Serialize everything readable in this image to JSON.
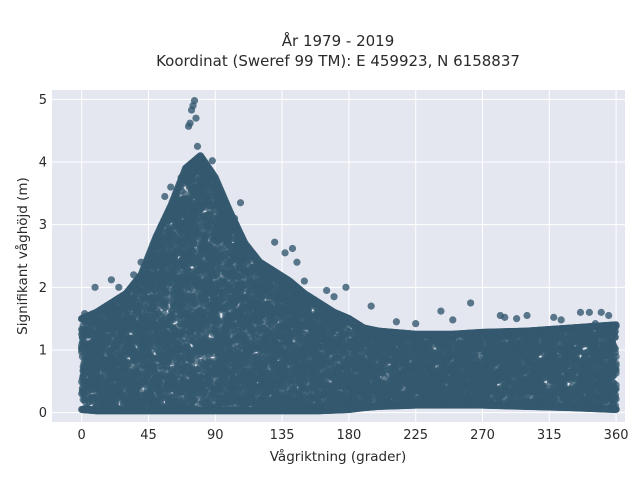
{
  "chart_data": {
    "type": "scatter",
    "title": "År 1979 - 2019",
    "subtitle": "Koordinat (Sweref 99 TM): E 459923, N 6158837",
    "xlabel": "Vågriktning (grader)",
    "ylabel": "Signifikant våghöjd (m)",
    "xlim": [
      -20,
      366
    ],
    "ylim": [
      -0.15,
      5.15
    ],
    "xticks": [
      0,
      45,
      90,
      135,
      180,
      225,
      270,
      315,
      360
    ],
    "yticks": [
      0,
      1,
      2,
      3,
      4,
      5
    ],
    "grid": true,
    "legend": "none",
    "series": [
      {
        "color": "#34596f",
        "envelope": [
          {
            "x": 0,
            "min": 0.05,
            "max": 1.5
          },
          {
            "x": 10,
            "min": 0.03,
            "max": 1.6
          },
          {
            "x": 20,
            "min": 0.03,
            "max": 1.75
          },
          {
            "x": 30,
            "min": 0.03,
            "max": 1.9
          },
          {
            "x": 40,
            "min": 0.03,
            "max": 2.2
          },
          {
            "x": 50,
            "min": 0.03,
            "max": 2.8
          },
          {
            "x": 60,
            "min": 0.03,
            "max": 3.3
          },
          {
            "x": 70,
            "min": 0.03,
            "max": 3.9
          },
          {
            "x": 80,
            "min": 0.03,
            "max": 4.1
          },
          {
            "x": 90,
            "min": 0.03,
            "max": 3.75
          },
          {
            "x": 100,
            "min": 0.03,
            "max": 3.2
          },
          {
            "x": 110,
            "min": 0.03,
            "max": 2.7
          },
          {
            "x": 120,
            "min": 0.03,
            "max": 2.4
          },
          {
            "x": 130,
            "min": 0.03,
            "max": 2.25
          },
          {
            "x": 140,
            "min": 0.03,
            "max": 2.1
          },
          {
            "x": 150,
            "min": 0.03,
            "max": 1.9
          },
          {
            "x": 160,
            "min": 0.03,
            "max": 1.75
          },
          {
            "x": 170,
            "min": 0.04,
            "max": 1.6
          },
          {
            "x": 180,
            "min": 0.05,
            "max": 1.5
          },
          {
            "x": 190,
            "min": 0.08,
            "max": 1.35
          },
          {
            "x": 200,
            "min": 0.1,
            "max": 1.3
          },
          {
            "x": 225,
            "min": 0.12,
            "max": 1.25
          },
          {
            "x": 250,
            "min": 0.12,
            "max": 1.25
          },
          {
            "x": 270,
            "min": 0.12,
            "max": 1.28
          },
          {
            "x": 300,
            "min": 0.1,
            "max": 1.3
          },
          {
            "x": 330,
            "min": 0.08,
            "max": 1.35
          },
          {
            "x": 360,
            "min": 0.05,
            "max": 1.4
          }
        ],
        "outliers": [
          {
            "x": 76,
            "y": 4.98
          },
          {
            "x": 75,
            "y": 4.9
          },
          {
            "x": 74,
            "y": 4.83
          },
          {
            "x": 77,
            "y": 4.7
          },
          {
            "x": 73,
            "y": 4.62
          },
          {
            "x": 72,
            "y": 4.57
          },
          {
            "x": 78,
            "y": 4.25
          },
          {
            "x": 88,
            "y": 4.02
          },
          {
            "x": 56,
            "y": 3.45
          },
          {
            "x": 60,
            "y": 3.6
          },
          {
            "x": 67,
            "y": 3.75
          },
          {
            "x": 107,
            "y": 3.35
          },
          {
            "x": 103,
            "y": 3.1
          },
          {
            "x": 130,
            "y": 2.72
          },
          {
            "x": 142,
            "y": 2.62
          },
          {
            "x": 137,
            "y": 2.55
          },
          {
            "x": 145,
            "y": 2.4
          },
          {
            "x": 150,
            "y": 2.1
          },
          {
            "x": 178,
            "y": 2.0
          },
          {
            "x": 170,
            "y": 1.85
          },
          {
            "x": 165,
            "y": 1.95
          },
          {
            "x": 9,
            "y": 2.0
          },
          {
            "x": 20,
            "y": 2.12
          },
          {
            "x": 25,
            "y": 2.0
          },
          {
            "x": 35,
            "y": 2.2
          },
          {
            "x": 40,
            "y": 2.4
          },
          {
            "x": 2,
            "y": 1.58
          },
          {
            "x": 195,
            "y": 1.7
          },
          {
            "x": 212,
            "y": 1.45
          },
          {
            "x": 225,
            "y": 1.42
          },
          {
            "x": 242,
            "y": 1.62
          },
          {
            "x": 250,
            "y": 1.48
          },
          {
            "x": 262,
            "y": 1.75
          },
          {
            "x": 282,
            "y": 1.55
          },
          {
            "x": 285,
            "y": 1.52
          },
          {
            "x": 293,
            "y": 1.5
          },
          {
            "x": 300,
            "y": 1.55
          },
          {
            "x": 318,
            "y": 1.52
          },
          {
            "x": 323,
            "y": 1.48
          },
          {
            "x": 336,
            "y": 1.6
          },
          {
            "x": 342,
            "y": 1.6
          },
          {
            "x": 350,
            "y": 1.6
          },
          {
            "x": 355,
            "y": 1.55
          },
          {
            "x": 346,
            "y": 1.42
          }
        ]
      }
    ]
  }
}
